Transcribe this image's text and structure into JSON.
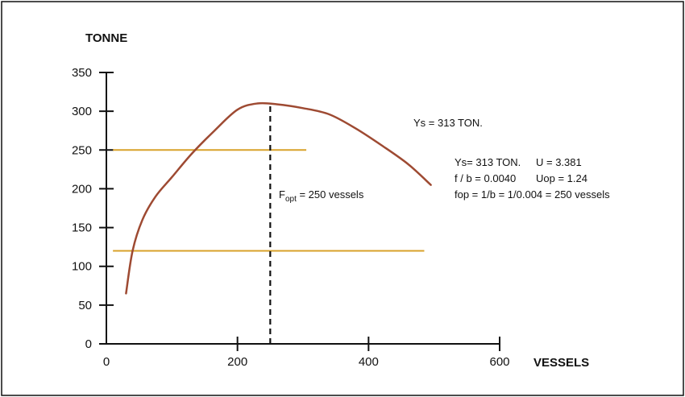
{
  "chart_data": {
    "type": "line",
    "xlabel": "VESSELS",
    "ylabel": "TONNE",
    "xlim": [
      0,
      600
    ],
    "ylim": [
      0,
      350
    ],
    "x_ticks": [
      "0",
      "200",
      "400",
      "600"
    ],
    "y_ticks": [
      "350",
      "300",
      "250",
      "200",
      "150",
      "100",
      "50",
      "0"
    ],
    "grid": false,
    "series": [
      {
        "color": "#9e4a32",
        "x": [
          30,
          40,
          55,
          75,
          100,
          130,
          165,
          200,
          230,
          260,
          300,
          340,
          380,
          420,
          460,
          495
        ],
        "y": [
          65,
          120,
          160,
          190,
          215,
          245,
          275,
          302,
          310,
          309,
          304,
          296,
          278,
          256,
          232,
          205
        ]
      }
    ],
    "reference_lines": [
      {
        "type": "horizontal",
        "y": 250,
        "x_from": 10,
        "x_to": 305,
        "color": "#d8a22a"
      },
      {
        "type": "horizontal",
        "y": 120,
        "x_from": 10,
        "x_to": 485,
        "color": "#d8a22a"
      },
      {
        "type": "vertical",
        "x": 250,
        "y_from": 0,
        "y_to": 309,
        "style": "dashed",
        "color": "#111111"
      }
    ],
    "annotations": {
      "fopt_main": "F",
      "fopt_sub": "opt",
      "fopt_rest": " = 250 vessels",
      "ys_top": "Ys = 313 TON.",
      "line1_a": "Ys= 313 TON.",
      "line1_b": "U = 3.381",
      "line2_a": "f / b = 0.0040",
      "line2_b": "Uop = 1.24",
      "line3": "fop = 1/b = 1/0.004 = 250 vessels"
    }
  }
}
